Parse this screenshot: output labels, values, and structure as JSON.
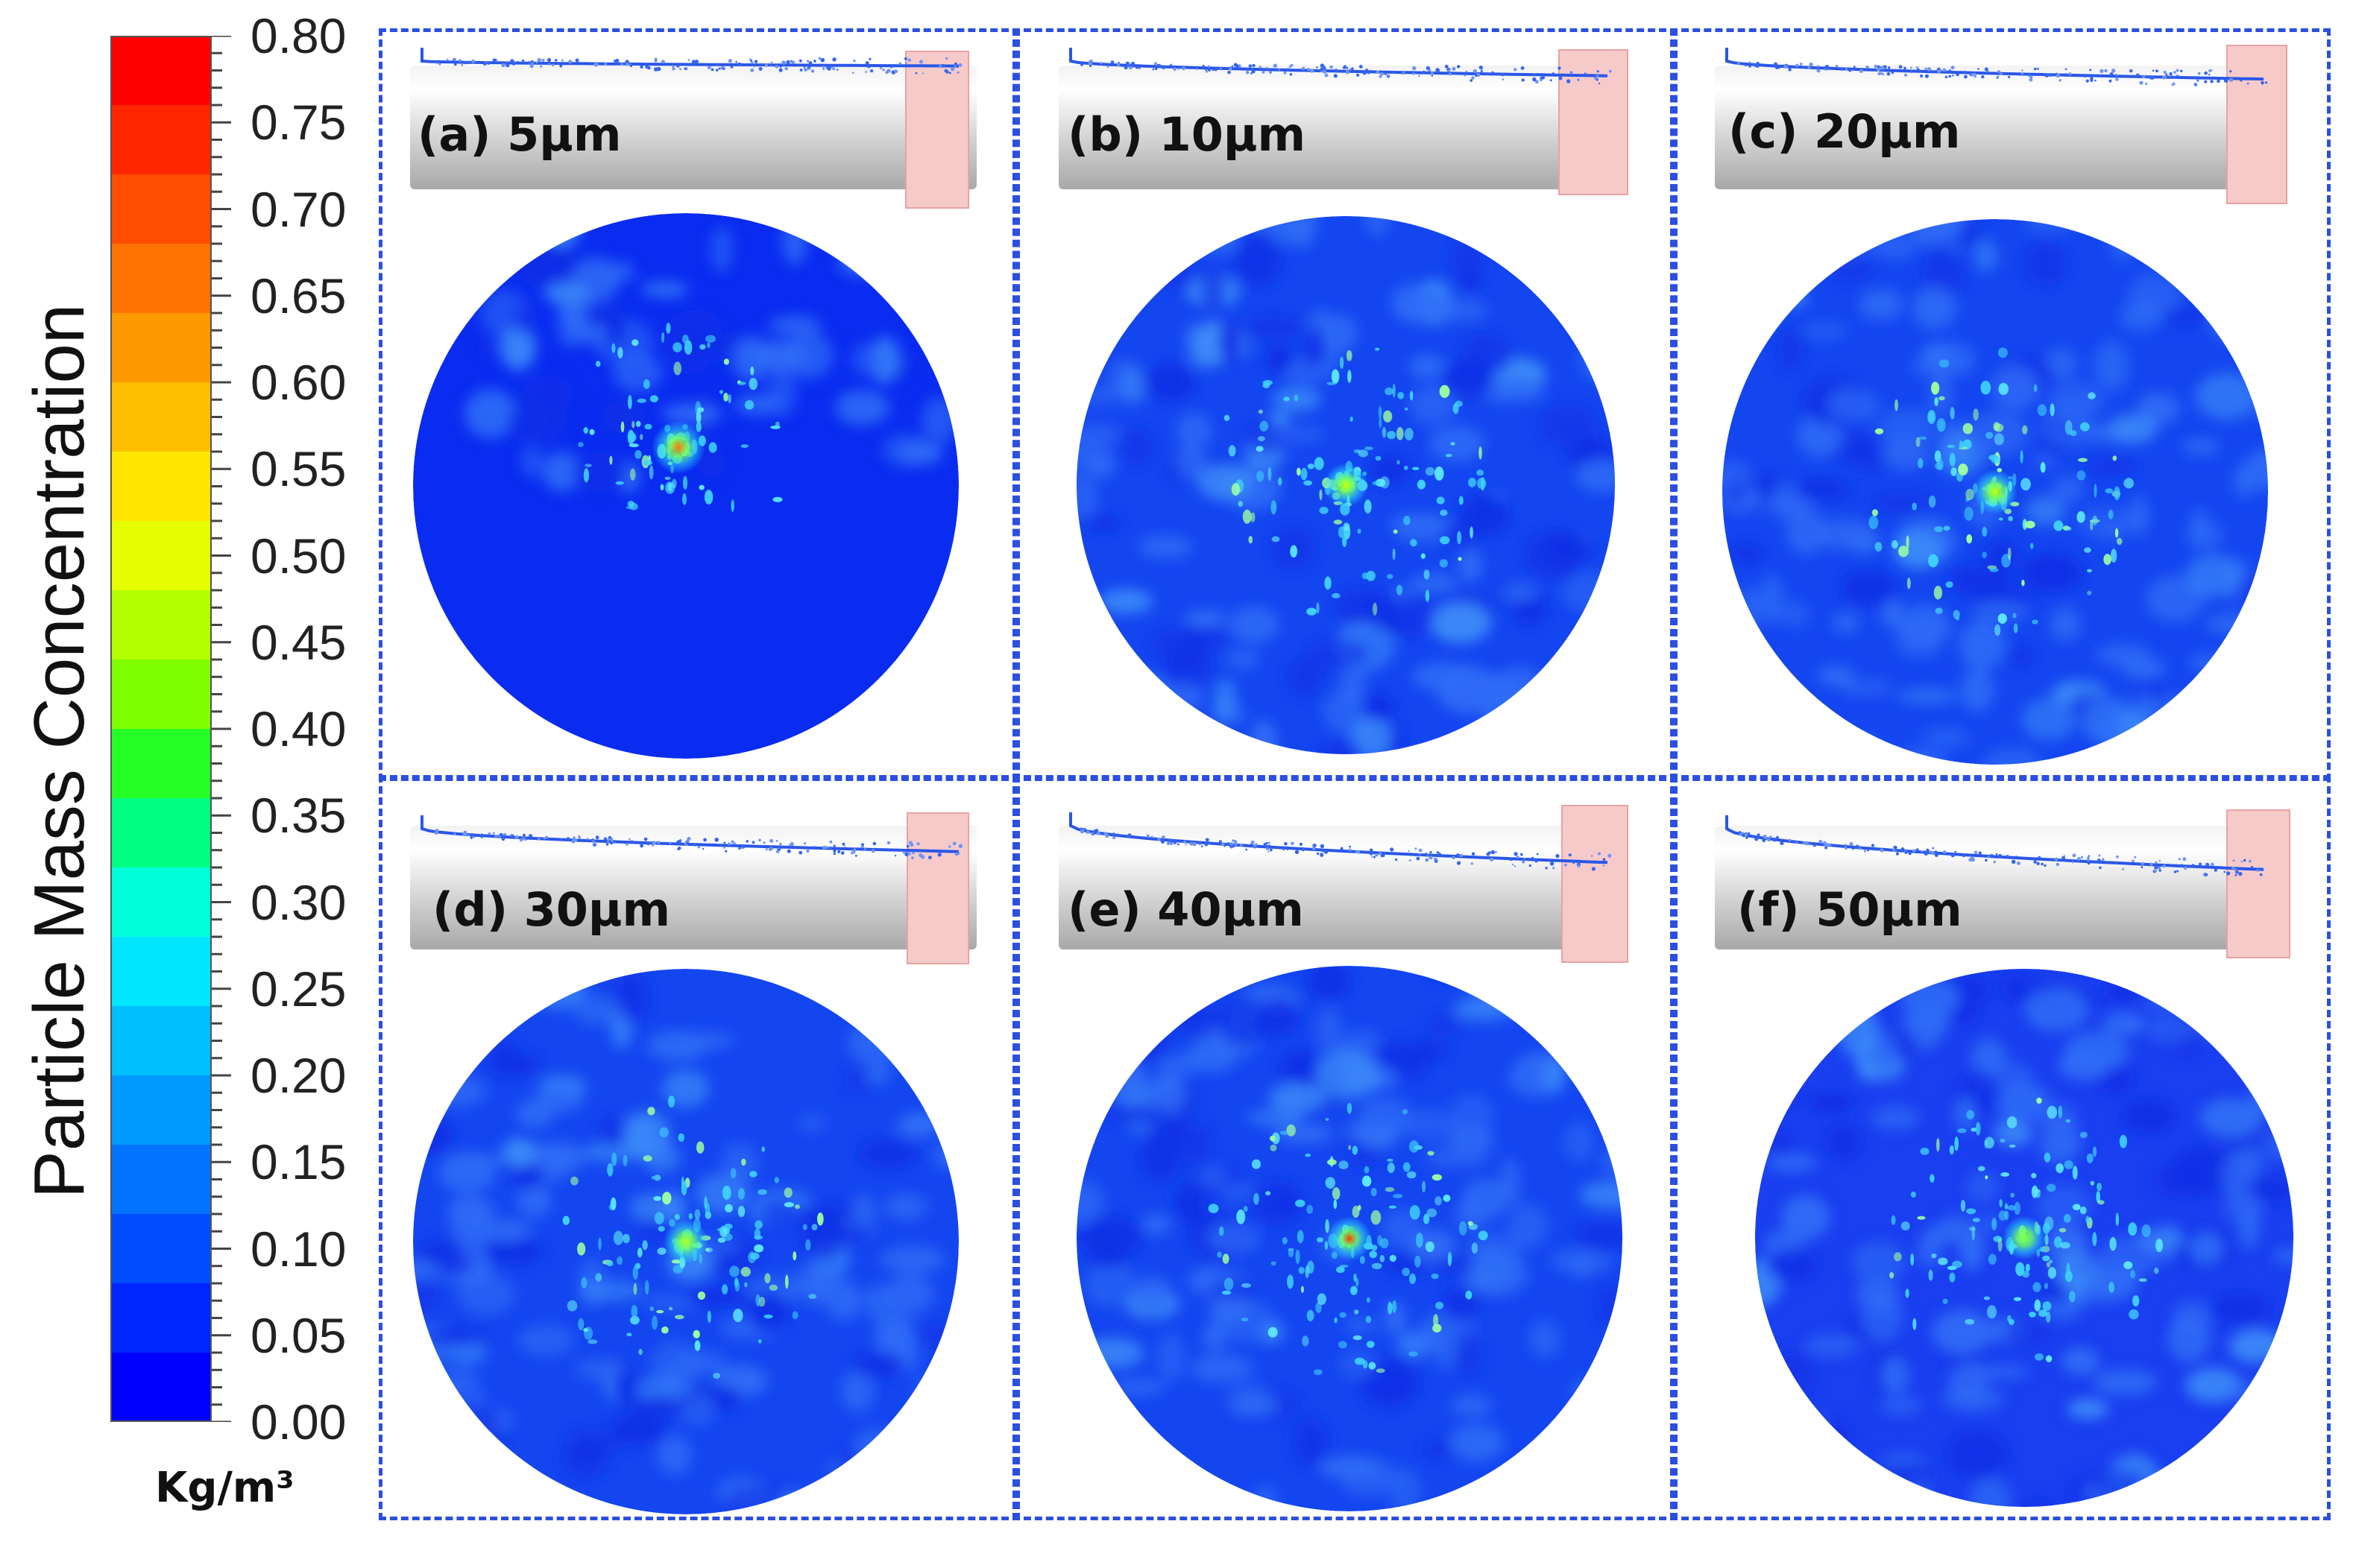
{
  "colorbar": {
    "title": "Particle Mass Concentration",
    "unit": "Kg/m³",
    "min": 0.0,
    "max": 0.8,
    "ticks": [
      "0.80",
      "0.75",
      "0.70",
      "0.65",
      "0.60",
      "0.55",
      "0.50",
      "0.45",
      "0.40",
      "0.35",
      "0.30",
      "0.25",
      "0.20",
      "0.15",
      "0.10",
      "0.05",
      "0.00"
    ],
    "colors": [
      "#0000ff",
      "#0026ff",
      "#004dff",
      "#0073ff",
      "#0099ff",
      "#00bfff",
      "#00e6ff",
      "#00ffd9",
      "#00ff80",
      "#26ff26",
      "#80ff00",
      "#b3ff00",
      "#e6ff00",
      "#ffe600",
      "#ffbf00",
      "#ff9900",
      "#ff7300",
      "#ff4d00",
      "#ff2600",
      "#ff0000"
    ]
  },
  "panels": [
    {
      "label": "(a) 5μm",
      "hotspot_color": "#ff7a00",
      "background": "#0a2cf0"
    },
    {
      "label": "(b) 10μm",
      "hotspot_color": "#c8ff00",
      "background": "#1446f0"
    },
    {
      "label": "(c) 20μm",
      "hotspot_color": "#bfff00",
      "background": "#1446f0"
    },
    {
      "label": "(d) 30μm",
      "hotspot_color": "#b0ff20",
      "background": "#1446f0"
    },
    {
      "label": "(e) 40μm",
      "hotspot_color": "#ff3a00",
      "background": "#1446f0"
    },
    {
      "label": "(f) 50μm",
      "hotspot_color": "#7dff4a",
      "background": "#1a3ff0"
    }
  ],
  "frame_color": "#2b4fe0"
}
